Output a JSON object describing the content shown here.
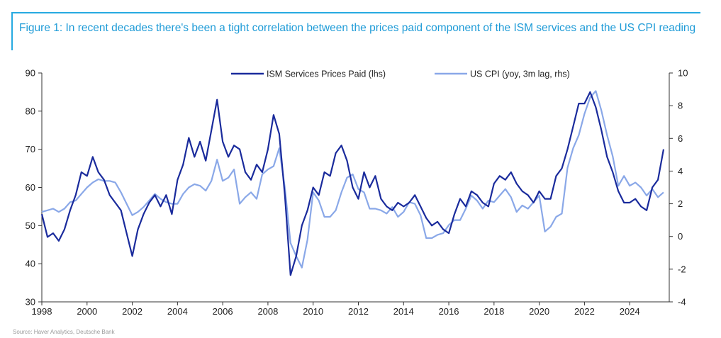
{
  "caption": "Figure 1: In recent decades there's been a tight correlation between the prices paid component of the ISM services and the US CPI reading",
  "source": "Source: Haver Analytics, Deutsche Bank",
  "chart_data": {
    "type": "line",
    "title": "Figure 1: In recent decades there's been a tight correlation between the prices paid component of the ISM services and the US CPI reading",
    "x_range": [
      1998,
      2025.75
    ],
    "x_ticks": [
      1998,
      2000,
      2002,
      2004,
      2006,
      2008,
      2010,
      2012,
      2014,
      2016,
      2018,
      2020,
      2022,
      2024
    ],
    "y_left": {
      "range": [
        30,
        90
      ],
      "ticks": [
        30,
        40,
        50,
        60,
        70,
        80,
        90
      ]
    },
    "y_right": {
      "range": [
        -4,
        10
      ],
      "ticks": [
        -4,
        -2,
        0,
        2,
        4,
        6,
        8,
        10
      ]
    },
    "legend_position": "top",
    "grid": false,
    "series": [
      {
        "name": "ISM Services Prices Paid (lhs)",
        "axis": "left",
        "color": "#1a2b9c",
        "x": [
          1998.0,
          1998.25,
          1998.5,
          1998.75,
          1999.0,
          1999.25,
          1999.5,
          1999.75,
          2000.0,
          2000.25,
          2000.5,
          2000.75,
          2001.0,
          2001.25,
          2001.5,
          2001.75,
          2002.0,
          2002.25,
          2002.5,
          2002.75,
          2003.0,
          2003.25,
          2003.5,
          2003.75,
          2004.0,
          2004.25,
          2004.5,
          2004.75,
          2005.0,
          2005.25,
          2005.5,
          2005.75,
          2006.0,
          2006.25,
          2006.5,
          2006.75,
          2007.0,
          2007.25,
          2007.5,
          2007.75,
          2008.0,
          2008.25,
          2008.5,
          2008.75,
          2009.0,
          2009.25,
          2009.5,
          2009.75,
          2010.0,
          2010.25,
          2010.5,
          2010.75,
          2011.0,
          2011.25,
          2011.5,
          2011.75,
          2012.0,
          2012.25,
          2012.5,
          2012.75,
          2013.0,
          2013.25,
          2013.5,
          2013.75,
          2014.0,
          2014.25,
          2014.5,
          2014.75,
          2015.0,
          2015.25,
          2015.5,
          2015.75,
          2016.0,
          2016.25,
          2016.5,
          2016.75,
          2017.0,
          2017.25,
          2017.5,
          2017.75,
          2018.0,
          2018.25,
          2018.5,
          2018.75,
          2019.0,
          2019.25,
          2019.5,
          2019.75,
          2020.0,
          2020.25,
          2020.5,
          2020.75,
          2021.0,
          2021.25,
          2021.5,
          2021.75,
          2022.0,
          2022.25,
          2022.5,
          2022.75,
          2023.0,
          2023.25,
          2023.5,
          2023.75,
          2024.0,
          2024.25,
          2024.5,
          2024.75,
          2025.0,
          2025.25,
          2025.5
        ],
        "values": [
          53,
          47,
          48,
          46,
          49,
          54,
          58,
          64,
          63,
          68,
          64,
          62,
          58,
          56,
          54,
          48,
          42,
          49,
          53,
          56,
          58,
          55,
          58,
          53,
          62,
          66,
          73,
          68,
          72,
          67,
          75,
          83,
          72,
          68,
          71,
          70,
          64,
          62,
          66,
          64,
          70,
          79,
          74,
          58,
          37,
          42,
          50,
          54,
          60,
          58,
          64,
          63,
          69,
          71,
          67,
          60,
          57,
          64,
          60,
          63,
          57,
          55,
          54,
          56,
          55,
          56,
          58,
          55,
          52,
          50,
          51,
          49,
          48,
          53,
          57,
          55,
          59,
          58,
          56,
          55,
          61,
          63,
          62,
          64,
          61,
          59,
          58,
          56,
          59,
          57,
          57,
          63,
          65,
          70,
          76,
          82,
          82,
          85,
          81,
          75,
          68,
          64,
          59,
          56,
          56,
          57,
          55,
          54,
          60,
          62,
          70
        ]
      },
      {
        "name": "US CPI (yoy, 3m lag, rhs)",
        "axis": "right",
        "color": "#8aa8e8",
        "x": [
          1998.0,
          1998.25,
          1998.5,
          1998.75,
          1999.0,
          1999.25,
          1999.5,
          1999.75,
          2000.0,
          2000.25,
          2000.5,
          2000.75,
          2001.0,
          2001.25,
          2001.5,
          2001.75,
          2002.0,
          2002.25,
          2002.5,
          2002.75,
          2003.0,
          2003.25,
          2003.5,
          2003.75,
          2004.0,
          2004.25,
          2004.5,
          2004.75,
          2005.0,
          2005.25,
          2005.5,
          2005.75,
          2006.0,
          2006.25,
          2006.5,
          2006.75,
          2007.0,
          2007.25,
          2007.5,
          2007.75,
          2008.0,
          2008.25,
          2008.5,
          2008.75,
          2009.0,
          2009.25,
          2009.5,
          2009.75,
          2010.0,
          2010.25,
          2010.5,
          2010.75,
          2011.0,
          2011.25,
          2011.5,
          2011.75,
          2012.0,
          2012.25,
          2012.5,
          2012.75,
          2013.0,
          2013.25,
          2013.5,
          2013.75,
          2014.0,
          2014.25,
          2014.5,
          2014.75,
          2015.0,
          2015.25,
          2015.5,
          2015.75,
          2016.0,
          2016.25,
          2016.5,
          2016.75,
          2017.0,
          2017.25,
          2017.5,
          2017.75,
          2018.0,
          2018.25,
          2018.5,
          2018.75,
          2019.0,
          2019.25,
          2019.5,
          2019.75,
          2020.0,
          2020.25,
          2020.5,
          2020.75,
          2021.0,
          2021.25,
          2021.5,
          2021.75,
          2022.0,
          2022.25,
          2022.5,
          2022.75,
          2023.0,
          2023.25,
          2023.5,
          2023.75,
          2024.0,
          2024.25,
          2024.5,
          2024.75,
          2025.0,
          2025.25,
          2025.5
        ],
        "values": [
          1.5,
          1.6,
          1.7,
          1.5,
          1.7,
          2.1,
          2.2,
          2.6,
          3.0,
          3.3,
          3.5,
          3.4,
          3.4,
          3.3,
          2.7,
          2.0,
          1.3,
          1.5,
          1.8,
          2.2,
          2.6,
          2.3,
          2.1,
          2.0,
          2.0,
          2.6,
          3.0,
          3.2,
          3.1,
          2.8,
          3.4,
          4.7,
          3.4,
          3.6,
          4.1,
          2.0,
          2.4,
          2.7,
          2.3,
          3.8,
          4.1,
          4.3,
          5.4,
          3.0,
          -0.4,
          -1.2,
          -1.9,
          -0.2,
          2.7,
          2.2,
          1.2,
          1.2,
          1.6,
          2.7,
          3.6,
          3.8,
          2.9,
          2.7,
          1.7,
          1.7,
          1.6,
          1.4,
          1.8,
          1.2,
          1.5,
          2.1,
          2.0,
          1.3,
          -0.1,
          -0.1,
          0.1,
          0.2,
          0.7,
          1.0,
          1.0,
          1.7,
          2.5,
          2.2,
          1.7,
          2.2,
          2.1,
          2.5,
          2.9,
          2.4,
          1.5,
          1.9,
          1.7,
          2.1,
          2.5,
          0.3,
          0.6,
          1.2,
          1.4,
          4.2,
          5.4,
          6.2,
          7.5,
          8.5,
          8.9,
          7.7,
          6.2,
          4.9,
          3.1,
          3.7,
          3.1,
          3.3,
          3.0,
          2.5,
          2.9,
          2.4,
          2.7
        ]
      }
    ]
  }
}
